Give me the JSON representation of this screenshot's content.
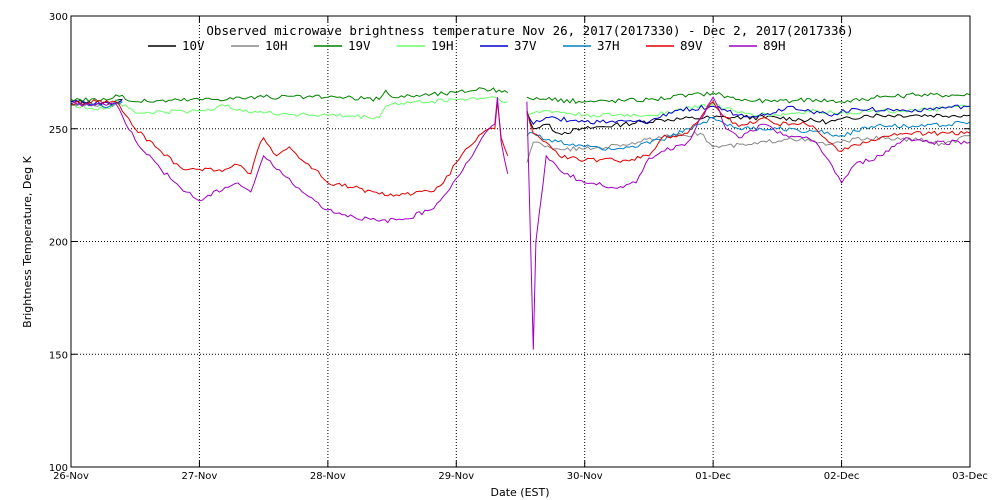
{
  "chart_data": {
    "type": "line",
    "title": "Observed microwave brightness temperature Nov 26, 2017(2017330) - Dec  2, 2017(2017336)",
    "xlabel": "Date (EST)",
    "ylabel": "Brightness Temperature, Deg K",
    "xlim": [
      0,
      7
    ],
    "ylim": [
      100,
      300
    ],
    "x_ticks": [
      {
        "value": 0,
        "label": "26-Nov"
      },
      {
        "value": 1,
        "label": "27-Nov"
      },
      {
        "value": 2,
        "label": "28-Nov"
      },
      {
        "value": 3,
        "label": "29-Nov"
      },
      {
        "value": 4,
        "label": "30-Nov"
      },
      {
        "value": 5,
        "label": "01-Dec"
      },
      {
        "value": 6,
        "label": "02-Dec"
      },
      {
        "value": 7,
        "label": "03-Dec"
      }
    ],
    "y_ticks": [
      100,
      150,
      200,
      250,
      300
    ],
    "grid": true,
    "legend_position": "top",
    "series": [
      {
        "name": "10V",
        "color": "#000000",
        "points": [
          [
            0,
            262
          ],
          [
            0.3,
            261
          ],
          [
            0.4,
            263
          ],
          [
            3.45,
            null
          ],
          [
            3.55,
            258
          ],
          [
            3.6,
            250
          ],
          [
            3.7,
            252
          ],
          [
            3.8,
            248
          ],
          [
            4.0,
            250
          ],
          [
            4.3,
            252
          ],
          [
            4.6,
            254
          ],
          [
            5.0,
            255
          ],
          [
            5.5,
            255
          ],
          [
            5.9,
            253
          ],
          [
            6.2,
            256
          ],
          [
            6.6,
            256
          ],
          [
            7.0,
            256
          ]
        ]
      },
      {
        "name": "10H",
        "color": "#888888",
        "points": [
          [
            0,
            261
          ],
          [
            0.3,
            260
          ],
          [
            0.4,
            262
          ],
          [
            3.45,
            null
          ],
          [
            3.55,
            235
          ],
          [
            3.6,
            244
          ],
          [
            3.8,
            241
          ],
          [
            4.0,
            241
          ],
          [
            4.3,
            243
          ],
          [
            4.6,
            246
          ],
          [
            4.9,
            248
          ],
          [
            5.0,
            242
          ],
          [
            5.3,
            243
          ],
          [
            5.6,
            246
          ],
          [
            5.9,
            243
          ],
          [
            6.2,
            246
          ],
          [
            6.6,
            245
          ],
          [
            6.8,
            243
          ],
          [
            7.0,
            247
          ]
        ]
      },
      {
        "name": "19V",
        "color": "#008000",
        "points": [
          [
            0,
            263
          ],
          [
            0.3,
            263
          ],
          [
            0.35,
            265
          ],
          [
            0.5,
            262
          ],
          [
            1.0,
            263
          ],
          [
            1.5,
            264
          ],
          [
            2.0,
            264
          ],
          [
            2.4,
            263
          ],
          [
            2.45,
            267
          ],
          [
            2.5,
            264
          ],
          [
            3.0,
            266
          ],
          [
            3.2,
            268
          ],
          [
            3.4,
            266
          ],
          [
            3.45,
            null
          ],
          [
            3.55,
            264
          ],
          [
            3.7,
            263
          ],
          [
            4.0,
            262
          ],
          [
            4.5,
            263
          ],
          [
            5.0,
            266
          ],
          [
            5.2,
            263
          ],
          [
            5.5,
            262
          ],
          [
            5.8,
            263
          ],
          [
            6.0,
            262
          ],
          [
            6.3,
            264
          ],
          [
            6.6,
            265
          ],
          [
            7.0,
            265
          ]
        ]
      },
      {
        "name": "19H",
        "color": "#66ff66",
        "points": [
          [
            0,
            260
          ],
          [
            0.3,
            259
          ],
          [
            0.35,
            263
          ],
          [
            0.5,
            257
          ],
          [
            1.0,
            258
          ],
          [
            1.2,
            260
          ],
          [
            1.5,
            257
          ],
          [
            2.0,
            256
          ],
          [
            2.4,
            255
          ],
          [
            2.45,
            260
          ],
          [
            2.5,
            261
          ],
          [
            3.0,
            263
          ],
          [
            3.3,
            264
          ],
          [
            3.4,
            262
          ],
          [
            3.45,
            null
          ],
          [
            3.55,
            256
          ],
          [
            3.7,
            258
          ],
          [
            4.0,
            256
          ],
          [
            4.5,
            256
          ],
          [
            5.0,
            261
          ],
          [
            5.2,
            257
          ],
          [
            5.5,
            256
          ],
          [
            5.8,
            258
          ],
          [
            6.0,
            257
          ],
          [
            6.3,
            258
          ],
          [
            6.6,
            258
          ],
          [
            7.0,
            260
          ]
        ]
      },
      {
        "name": "37V",
        "color": "#0000cc",
        "points": [
          [
            0,
            262
          ],
          [
            0.3,
            261
          ],
          [
            0.4,
            263
          ],
          [
            3.45,
            null
          ],
          [
            3.55,
            257
          ],
          [
            3.6,
            252
          ],
          [
            3.7,
            255
          ],
          [
            4.0,
            253
          ],
          [
            4.5,
            253
          ],
          [
            4.7,
            258
          ],
          [
            5.0,
            260
          ],
          [
            5.2,
            256
          ],
          [
            5.4,
            256
          ],
          [
            5.6,
            260
          ],
          [
            5.9,
            256
          ],
          [
            6.1,
            259
          ],
          [
            6.5,
            258
          ],
          [
            7.0,
            260
          ]
        ]
      },
      {
        "name": "37H",
        "color": "#0080c0",
        "points": [
          [
            0,
            261
          ],
          [
            0.3,
            260
          ],
          [
            0.4,
            262
          ],
          [
            3.45,
            null
          ],
          [
            3.55,
            247
          ],
          [
            3.6,
            248
          ],
          [
            3.7,
            245
          ],
          [
            4.0,
            242
          ],
          [
            4.3,
            241
          ],
          [
            4.6,
            245
          ],
          [
            4.9,
            252
          ],
          [
            5.0,
            255
          ],
          [
            5.2,
            250
          ],
          [
            5.5,
            250
          ],
          [
            5.8,
            249
          ],
          [
            6.0,
            247
          ],
          [
            6.3,
            252
          ],
          [
            6.6,
            251
          ],
          [
            7.0,
            253
          ]
        ]
      },
      {
        "name": "89V",
        "color": "#e00000",
        "points": [
          [
            0,
            261
          ],
          [
            0.2,
            262
          ],
          [
            0.35,
            262
          ],
          [
            0.5,
            250
          ],
          [
            0.7,
            240
          ],
          [
            0.85,
            233
          ],
          [
            1.0,
            232
          ],
          [
            1.2,
            232
          ],
          [
            1.3,
            234
          ],
          [
            1.4,
            230
          ],
          [
            1.45,
            240
          ],
          [
            1.5,
            246
          ],
          [
            1.6,
            238
          ],
          [
            1.7,
            242
          ],
          [
            1.8,
            236
          ],
          [
            1.9,
            232
          ],
          [
            2.0,
            226
          ],
          [
            2.2,
            224
          ],
          [
            2.4,
            221
          ],
          [
            2.6,
            221
          ],
          [
            2.8,
            222
          ],
          [
            2.9,
            226
          ],
          [
            3.0,
            235
          ],
          [
            3.1,
            242
          ],
          [
            3.2,
            248
          ],
          [
            3.3,
            250
          ],
          [
            3.32,
            262
          ],
          [
            3.35,
            246
          ],
          [
            3.4,
            238
          ],
          [
            3.45,
            null
          ],
          [
            3.55,
            258
          ],
          [
            3.6,
            248
          ],
          [
            3.7,
            244
          ],
          [
            3.8,
            238
          ],
          [
            4.0,
            236
          ],
          [
            4.3,
            236
          ],
          [
            4.5,
            238
          ],
          [
            4.6,
            246
          ],
          [
            4.8,
            248
          ],
          [
            5.0,
            262
          ],
          [
            5.1,
            255
          ],
          [
            5.2,
            251
          ],
          [
            5.4,
            255
          ],
          [
            5.5,
            252
          ],
          [
            5.7,
            253
          ],
          [
            5.8,
            250
          ],
          [
            5.9,
            244
          ],
          [
            6.0,
            240
          ],
          [
            6.1,
            243
          ],
          [
            6.3,
            246
          ],
          [
            6.5,
            248
          ],
          [
            6.7,
            248
          ],
          [
            7.0,
            248
          ]
        ]
      },
      {
        "name": "89H",
        "color": "#a000c0",
        "points": [
          [
            0,
            261
          ],
          [
            0.2,
            261
          ],
          [
            0.35,
            261
          ],
          [
            0.5,
            245
          ],
          [
            0.7,
            232
          ],
          [
            0.85,
            224
          ],
          [
            1.0,
            218
          ],
          [
            1.2,
            224
          ],
          [
            1.3,
            226
          ],
          [
            1.4,
            222
          ],
          [
            1.45,
            230
          ],
          [
            1.5,
            238
          ],
          [
            1.6,
            232
          ],
          [
            1.7,
            228
          ],
          [
            1.8,
            222
          ],
          [
            1.9,
            218
          ],
          [
            2.0,
            214
          ],
          [
            2.2,
            211
          ],
          [
            2.4,
            209
          ],
          [
            2.6,
            210
          ],
          [
            2.8,
            214
          ],
          [
            2.9,
            220
          ],
          [
            3.0,
            228
          ],
          [
            3.1,
            236
          ],
          [
            3.2,
            246
          ],
          [
            3.3,
            252
          ],
          [
            3.32,
            264
          ],
          [
            3.35,
            244
          ],
          [
            3.4,
            230
          ],
          [
            3.45,
            null
          ],
          [
            3.55,
            262
          ],
          [
            3.6,
            152
          ],
          [
            3.62,
            200
          ],
          [
            3.7,
            238
          ],
          [
            3.8,
            232
          ],
          [
            4.0,
            226
          ],
          [
            4.3,
            224
          ],
          [
            4.4,
            226
          ],
          [
            4.5,
            237
          ],
          [
            4.6,
            240
          ],
          [
            4.8,
            244
          ],
          [
            5.0,
            264
          ],
          [
            5.1,
            250
          ],
          [
            5.2,
            246
          ],
          [
            5.4,
            252
          ],
          [
            5.5,
            248
          ],
          [
            5.7,
            246
          ],
          [
            5.8,
            244
          ],
          [
            5.9,
            236
          ],
          [
            6.0,
            226
          ],
          [
            6.1,
            234
          ],
          [
            6.3,
            238
          ],
          [
            6.5,
            246
          ],
          [
            6.7,
            244
          ],
          [
            7.0,
            244
          ]
        ]
      }
    ]
  }
}
